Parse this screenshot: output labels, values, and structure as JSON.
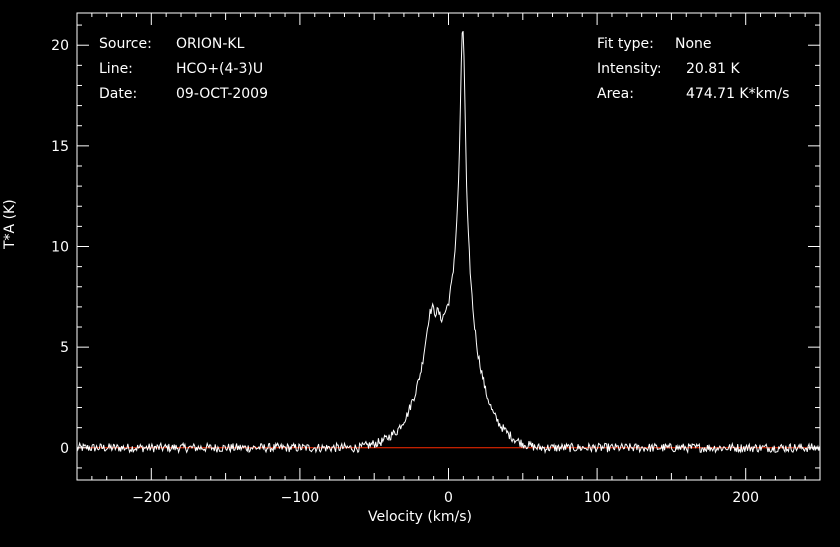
{
  "info_left": [
    {
      "key": "Source:",
      "value": "ORION-KL"
    },
    {
      "key": "Line:",
      "value": "HCO+(4-3)U"
    },
    {
      "key": "Date:",
      "value": "09-OCT-2009"
    }
  ],
  "info_right": [
    {
      "key": "Fit type:",
      "value": "None"
    },
    {
      "key": "Intensity:",
      "value": "20.81 K"
    },
    {
      "key": "Area:",
      "value": "474.71 K*km/s"
    }
  ],
  "chart_data": {
    "type": "line",
    "xlabel": "Velocity (km/s)",
    "ylabel": "T*A (K)",
    "xlim": [
      -250,
      250
    ],
    "ylim": [
      -1.6,
      21.6
    ],
    "xticks": [
      -200,
      -100,
      0,
      100,
      200
    ],
    "yticks": [
      0,
      5,
      10,
      15,
      20
    ],
    "baseline": 0,
    "colors": {
      "spectrum": "#ffffff",
      "baseline": "#ff2a00",
      "axes": "#ffffff",
      "background": "#000000"
    },
    "series": [
      {
        "x": [
          -250,
          -200,
          -150,
          -100,
          -60,
          -45,
          -35,
          -28,
          -22,
          -18,
          -15,
          -13,
          -11,
          -9,
          -7,
          -5,
          -3,
          0,
          3,
          5,
          7,
          8,
          9,
          10,
          11,
          12,
          13,
          15,
          17,
          20,
          25,
          30,
          35,
          40,
          45,
          50,
          60,
          100,
          150,
          200,
          250
        ],
        "y": [
          0.0,
          0.0,
          0.0,
          0.0,
          0.0,
          0.3,
          0.8,
          1.6,
          2.8,
          4.0,
          5.5,
          6.6,
          7.0,
          6.7,
          6.8,
          6.4,
          6.6,
          7.2,
          8.6,
          10.5,
          13.5,
          17.0,
          20.3,
          20.8,
          17.5,
          13.5,
          11.0,
          8.3,
          6.4,
          4.6,
          2.8,
          1.7,
          1.1,
          0.7,
          0.4,
          0.2,
          0.0,
          0.0,
          0.0,
          0.0,
          0.0
        ]
      }
    ]
  }
}
